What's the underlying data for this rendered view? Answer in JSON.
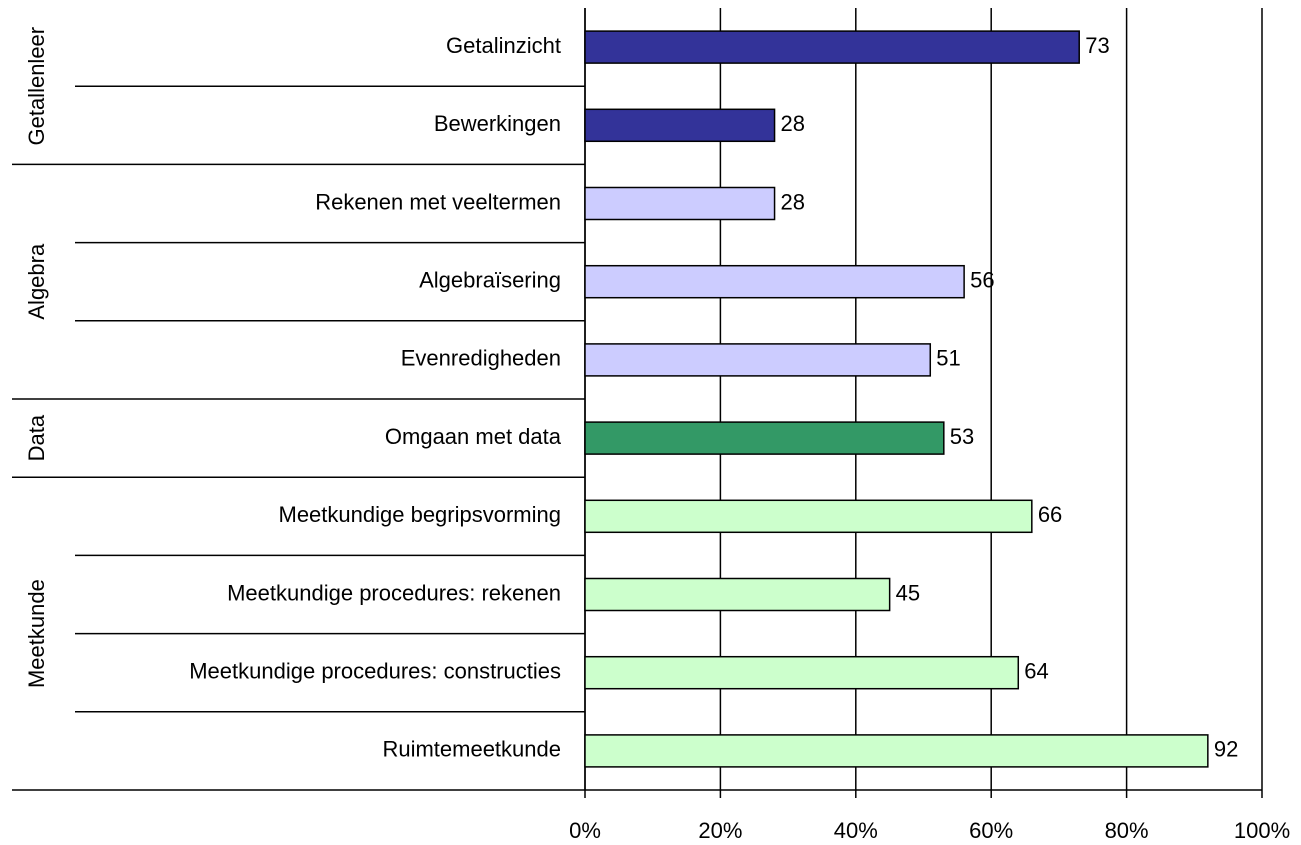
{
  "chart_data": {
    "type": "bar",
    "groups": [
      {
        "name": "Getallenleer",
        "color": "#333399",
        "categories": [
          "Getalinzicht",
          "Bewerkingen"
        ],
        "values": [
          73,
          28
        ]
      },
      {
        "name": "Algebra",
        "color": "#ccccff",
        "categories": [
          "Rekenen met veeltermen",
          "Algebraïsering",
          "Evenredigheden"
        ],
        "values": [
          28,
          56,
          51
        ]
      },
      {
        "name": "Data",
        "color": "#339966",
        "categories": [
          "Omgaan met data"
        ],
        "values": [
          53
        ]
      },
      {
        "name": "Meetkunde",
        "color": "#ccffcc",
        "categories": [
          "Meetkundige begripsvorming",
          "Meetkundige procedures: rekenen",
          "Meetkundige procedures: constructies",
          "Ruimtemeetkunde"
        ],
        "values": [
          66,
          45,
          64,
          92
        ]
      }
    ],
    "xlim": [
      0,
      100
    ],
    "xticks": [
      {
        "value": 0,
        "label": "0%"
      },
      {
        "value": 20,
        "label": "20%"
      },
      {
        "value": 40,
        "label": "40%"
      },
      {
        "value": 60,
        "label": "60%"
      },
      {
        "value": 80,
        "label": "80%"
      },
      {
        "value": 100,
        "label": "100%"
      }
    ],
    "grid": true
  }
}
